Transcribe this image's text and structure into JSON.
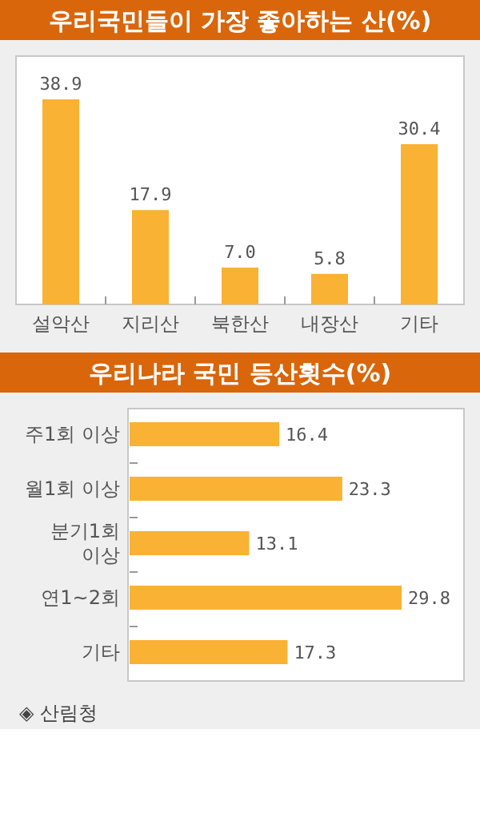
{
  "chart_data": [
    {
      "type": "bar",
      "title": "우리국민들이 가장 좋아하는 산(%)",
      "categories": [
        "설악산",
        "지리산",
        "북한산",
        "내장산",
        "기타"
      ],
      "values": [
        38.9,
        17.9,
        7.0,
        5.8,
        30.4
      ],
      "value_labels": [
        "38.9",
        "17.9",
        "7.0",
        "5.8",
        "30.4"
      ],
      "color": "#f9b233"
    },
    {
      "type": "bar",
      "orientation": "horizontal",
      "title": "우리나라 국민 등산횟수(%)",
      "categories": [
        "주1회 이상",
        "월1회 이상",
        "분기1회\n이상",
        "연1~2회",
        "기타"
      ],
      "values": [
        16.4,
        23.3,
        13.1,
        29.8,
        17.3
      ],
      "value_labels": [
        "16.4",
        "23.3",
        "13.1",
        "29.8",
        "17.3"
      ],
      "color": "#f9b233",
      "annotations": [
        "◈ 산림청"
      ]
    }
  ]
}
